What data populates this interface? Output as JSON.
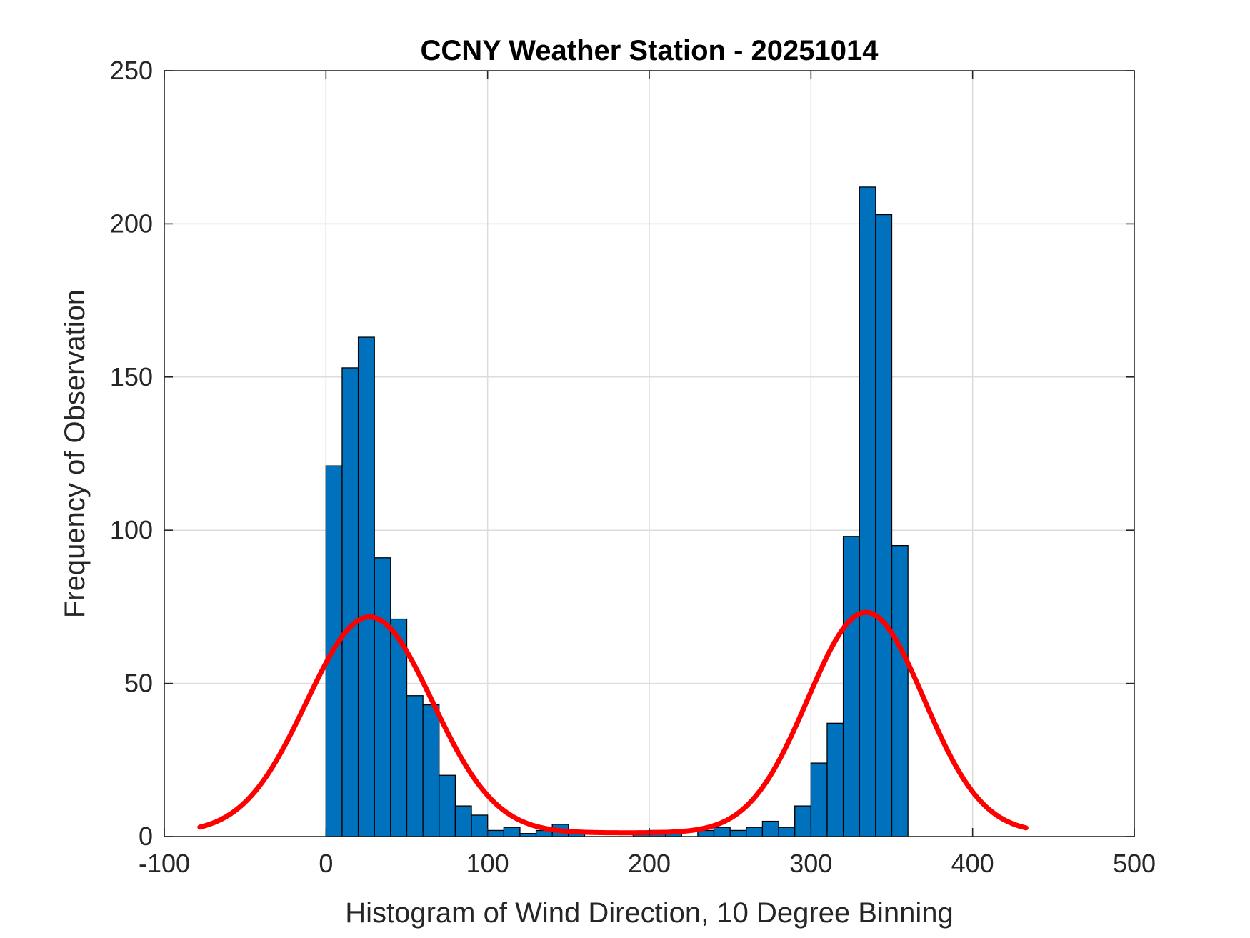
{
  "chart_data": {
    "type": "bar",
    "title": "CCNY Weather Station - 20251014",
    "xlabel": "Histogram of Wind Direction, 10 Degree Binning",
    "ylabel": "Frequency of Observation",
    "xlim": [
      -100,
      500
    ],
    "ylim": [
      0,
      250
    ],
    "xticks": [
      "-100",
      "0",
      "100",
      "200",
      "300",
      "400",
      "500"
    ],
    "yticks": [
      "0",
      "50",
      "100",
      "150",
      "200",
      "250"
    ],
    "grid": true,
    "bin_width": 10,
    "bin_starts": [
      0,
      10,
      20,
      30,
      40,
      50,
      60,
      70,
      80,
      90,
      100,
      110,
      120,
      130,
      140,
      150,
      160,
      170,
      180,
      190,
      200,
      210,
      220,
      230,
      240,
      250,
      260,
      270,
      280,
      290,
      300,
      310,
      320,
      330,
      340,
      350
    ],
    "values": [
      121,
      153,
      163,
      91,
      71,
      46,
      43,
      20,
      10,
      7,
      2,
      3,
      1,
      2,
      4,
      1,
      0,
      0,
      0,
      1,
      2,
      1,
      0,
      2,
      3,
      2,
      3,
      5,
      3,
      10,
      24,
      37,
      98,
      212,
      203,
      95
    ],
    "series": [
      {
        "name": "Histogram",
        "color": "#0072BD"
      },
      {
        "name": "Fit",
        "color": "#FF0000",
        "x_range": [
          -78,
          433
        ],
        "components": [
          {
            "center": 27,
            "amplitude": 70.5,
            "sigma": 39
          },
          {
            "center": 334,
            "amplitude": 72,
            "sigma": 36
          }
        ],
        "baseline": 1.2
      }
    ]
  }
}
